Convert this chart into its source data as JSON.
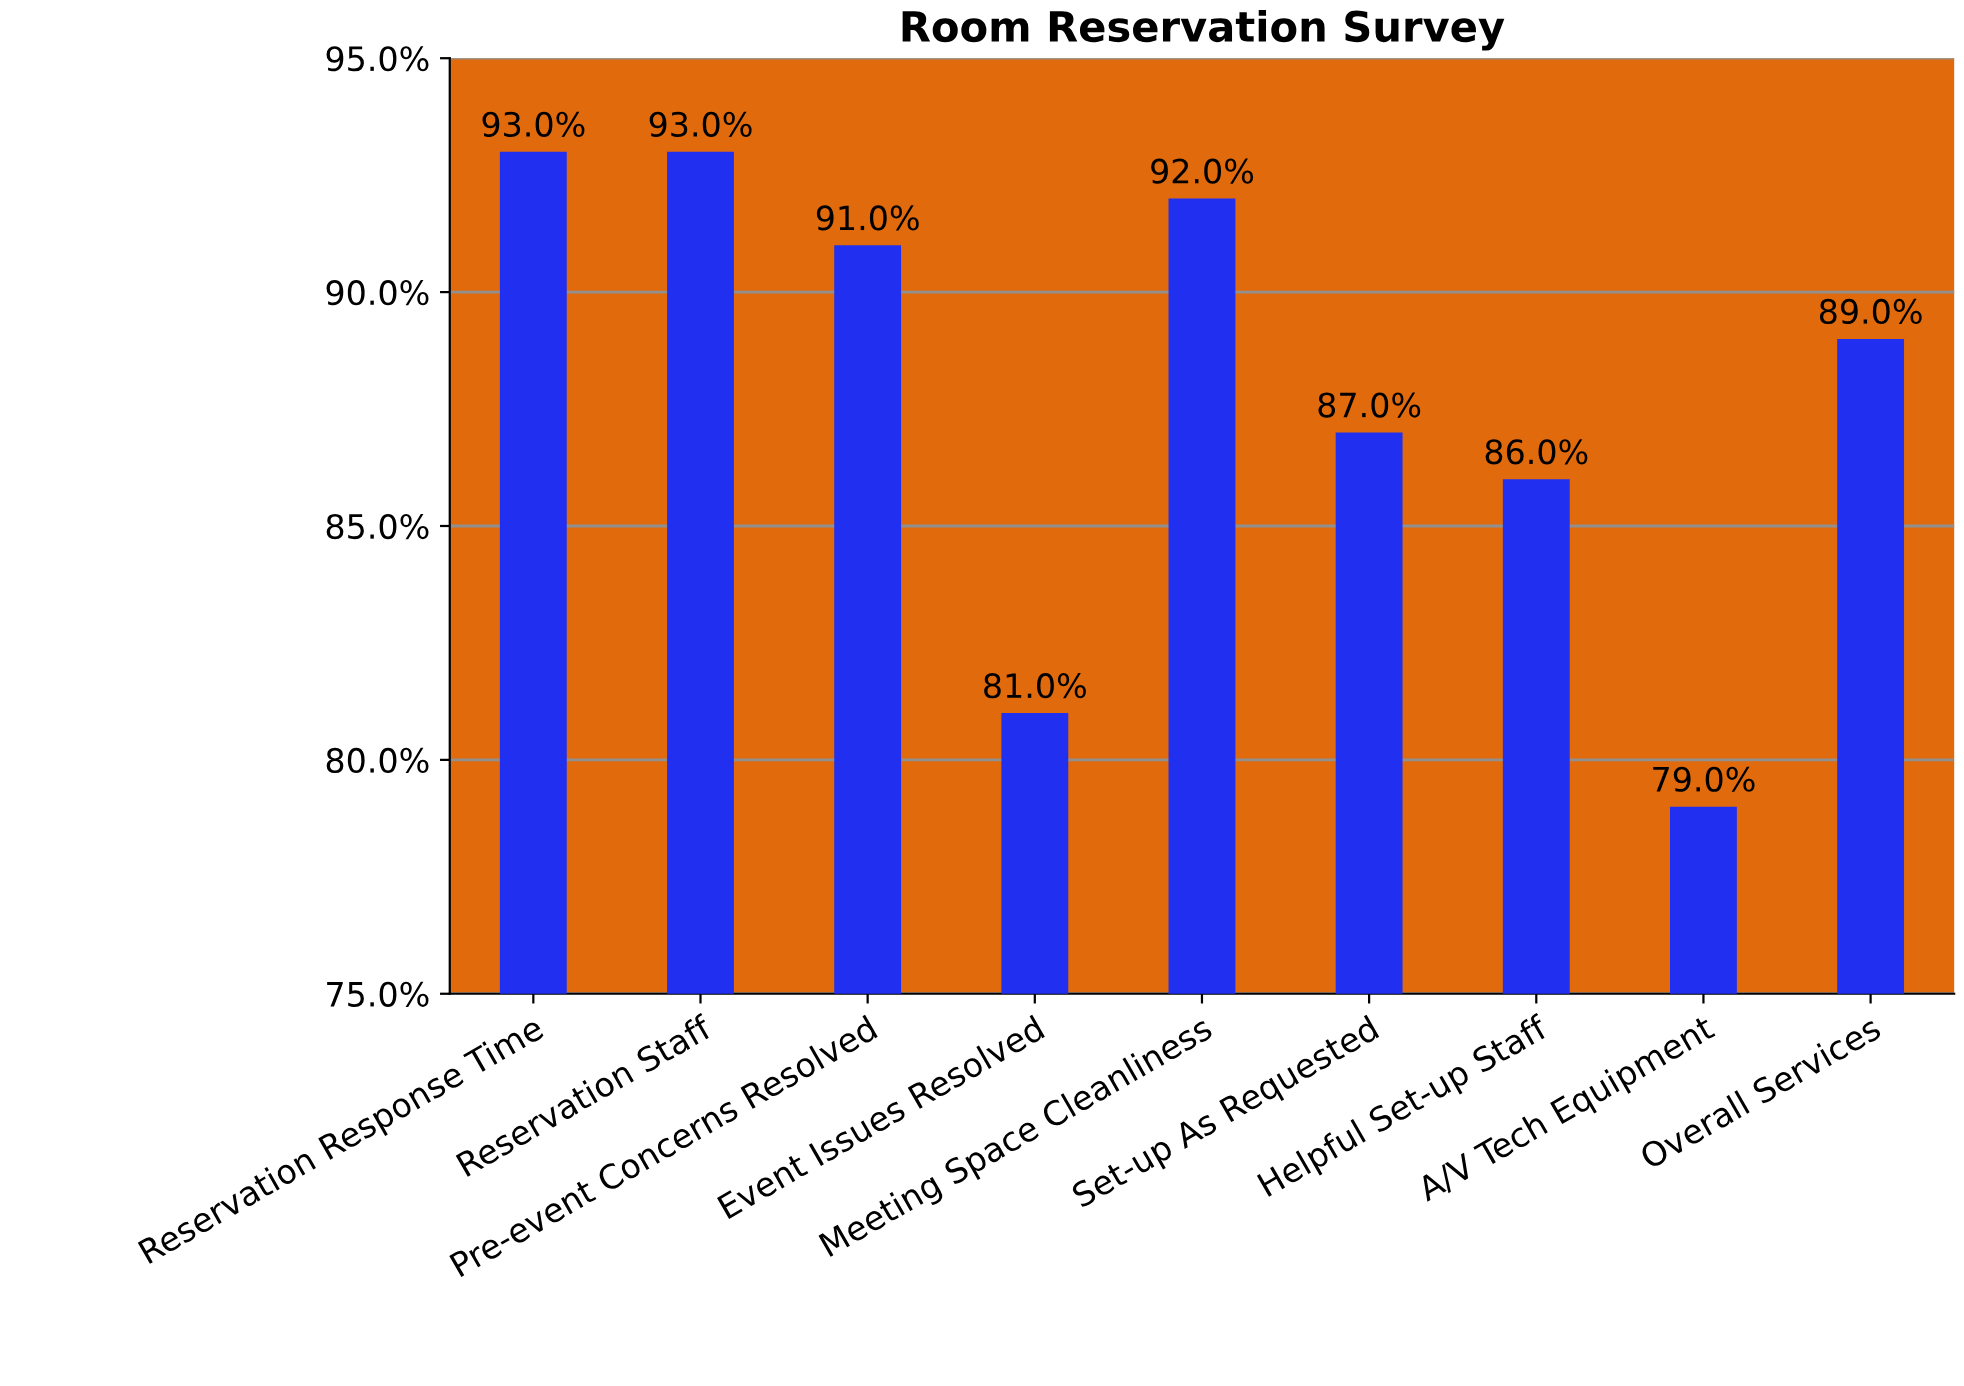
{
  "chart_data": {
    "type": "bar",
    "title": "Room Reservation Survey",
    "categories": [
      "Reservation Response Time",
      "Reservation Staff",
      "Pre-event Concerns Resolved",
      "Event Issues Resolved",
      "Meeting Space Cleanliness",
      "Set-up As Requested",
      "Helpful Set-up Staff",
      "A/V Tech Equipment",
      "Overall Services"
    ],
    "values": [
      93.0,
      93.0,
      91.0,
      81.0,
      92.0,
      87.0,
      86.0,
      79.0,
      89.0
    ],
    "color": "#2130f0",
    "value_labels": [
      "93.0%",
      "93.0%",
      "91.0%",
      "81.0%",
      "92.0%",
      "87.0%",
      "86.0%",
      "79.0%",
      "89.0%"
    ],
    "ylim": [
      75,
      95
    ],
    "yticks": [
      {
        "value": 75,
        "label": "75.0%"
      },
      {
        "value": 80,
        "label": "80.0%"
      },
      {
        "value": 85,
        "label": "85.0%"
      },
      {
        "value": 90,
        "label": "90.0%"
      },
      {
        "value": 95,
        "label": "95.0%"
      }
    ],
    "grid": "y",
    "legend": false
  }
}
